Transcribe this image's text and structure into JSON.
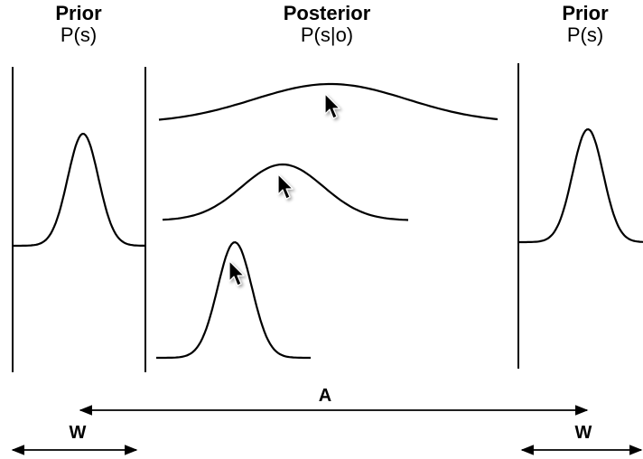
{
  "labels": {
    "left_prior_title": "Prior",
    "left_prior_formula": "P(s)",
    "posterior_title": "Posterior",
    "posterior_formula": "P(s|o)",
    "right_prior_title": "Prior",
    "right_prior_formula": "P(s)",
    "distance_label": "A",
    "left_width_label": "W",
    "right_width_label": "W"
  },
  "icons": {
    "pointer": "mouse-pointer-icon"
  }
}
